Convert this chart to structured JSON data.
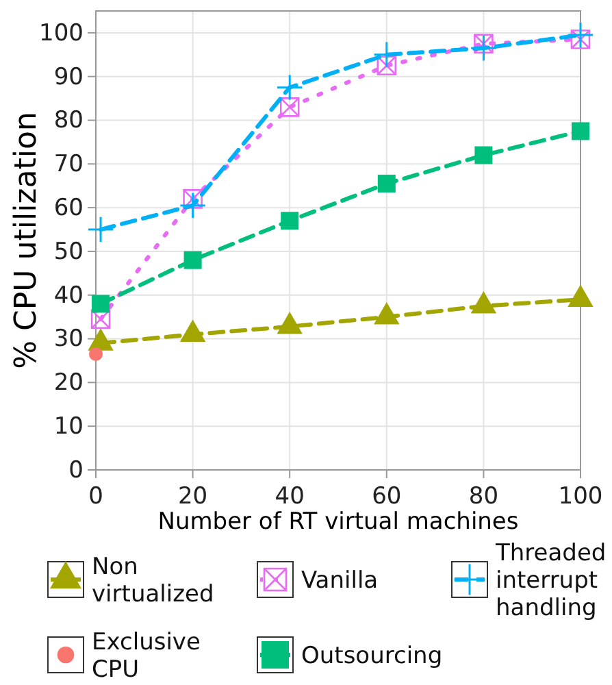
{
  "chart_data": {
    "type": "line",
    "xlabel": "Number of RT virtual machines",
    "ylabel": "% CPU utilization",
    "xlim": [
      0,
      100
    ],
    "xticks": [
      0,
      20,
      40,
      60,
      80,
      100
    ],
    "ylim": [
      0,
      105
    ],
    "yticks": [
      0,
      10,
      20,
      30,
      40,
      50,
      60,
      70,
      80,
      90,
      100
    ],
    "grid": true,
    "legend": "bottom",
    "series": [
      {
        "name": "Non virtualized",
        "color": "#a3a500",
        "marker": "triangle",
        "line_style": "dashed",
        "x": [
          1,
          20,
          40,
          60,
          80,
          100
        ],
        "values": [
          29,
          31,
          32.8,
          35,
          37.5,
          39
        ]
      },
      {
        "name": "Exclusive CPU",
        "type": "scatter",
        "color": "#f8766d",
        "marker": "circle",
        "x": [
          0
        ],
        "values": [
          26.5
        ]
      },
      {
        "name": "Vanilla",
        "color": "#e76bf3",
        "marker": "cross",
        "line_style": "dotted",
        "x": [
          1,
          20,
          40,
          60,
          80,
          100
        ],
        "values": [
          34.5,
          62,
          83,
          92.5,
          97.5,
          98.5
        ]
      },
      {
        "name": "Outsourcing",
        "color": "#00bf7d",
        "marker": "square",
        "line_style": "dashed",
        "x": [
          1,
          20,
          40,
          60,
          80,
          100
        ],
        "values": [
          38,
          48,
          57,
          65.5,
          72,
          77.5
        ]
      },
      {
        "name": "Threaded interrupt handling",
        "color": "#00b0f6",
        "marker": "cross",
        "line_style": "dashed",
        "x": [
          1,
          20,
          40,
          60,
          80,
          100
        ],
        "values": [
          55,
          60.5,
          87.5,
          95,
          96.5,
          99.5
        ]
      }
    ]
  }
}
